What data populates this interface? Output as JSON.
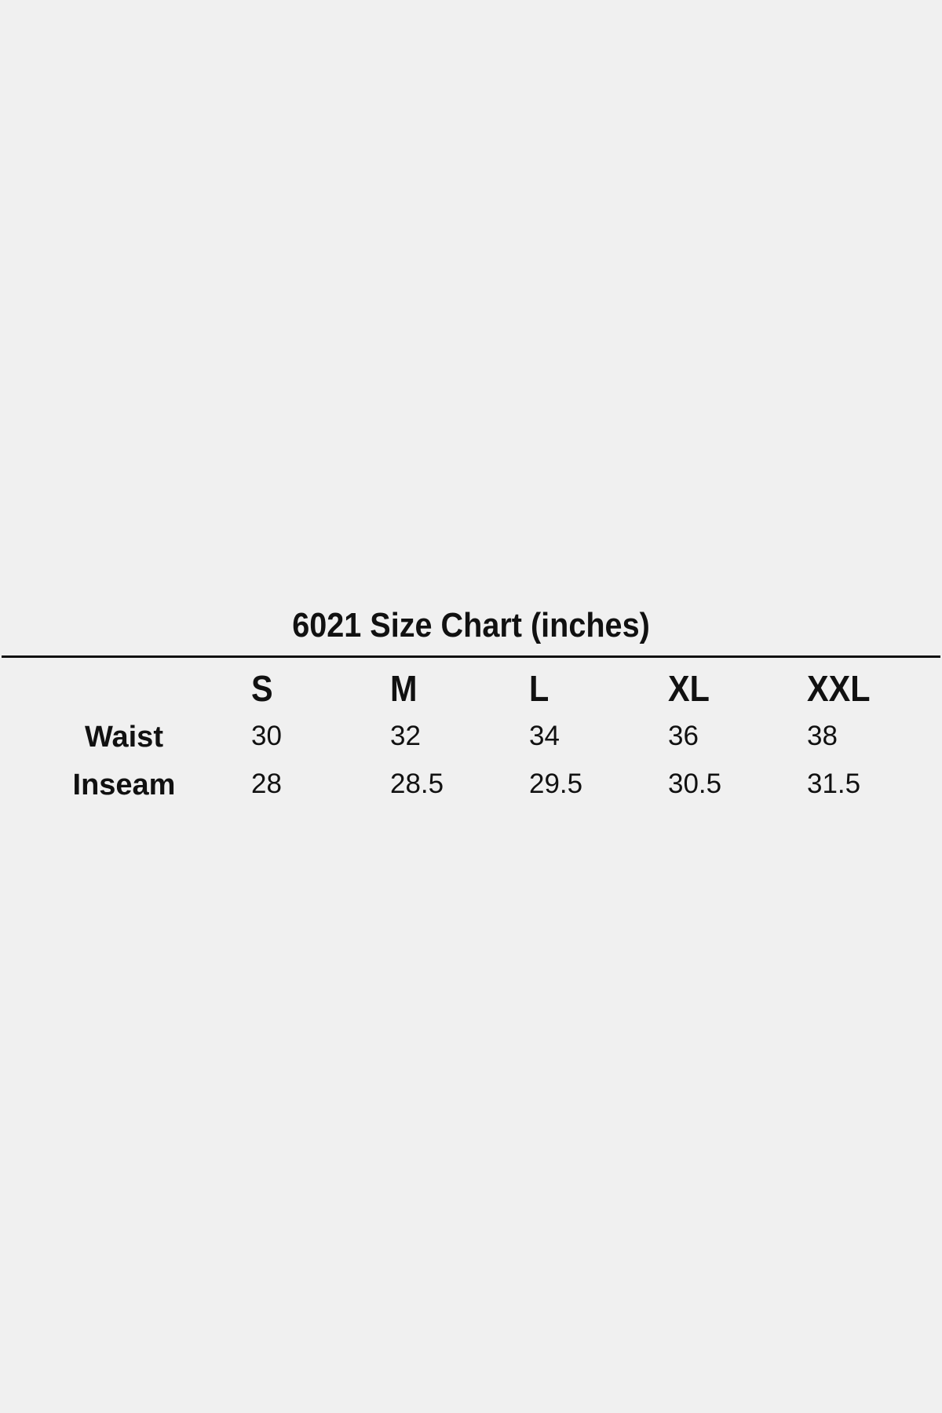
{
  "title": "6021 Size Chart (inches)",
  "columns": [
    "S",
    "M",
    "L",
    "XL",
    "XXL"
  ],
  "rows": [
    {
      "label": "Waist",
      "values": [
        "30",
        "32",
        "34",
        "36",
        "38"
      ]
    },
    {
      "label": "Inseam",
      "values": [
        "28",
        "28.5",
        "29.5",
        "30.5",
        "31.5"
      ]
    }
  ]
}
